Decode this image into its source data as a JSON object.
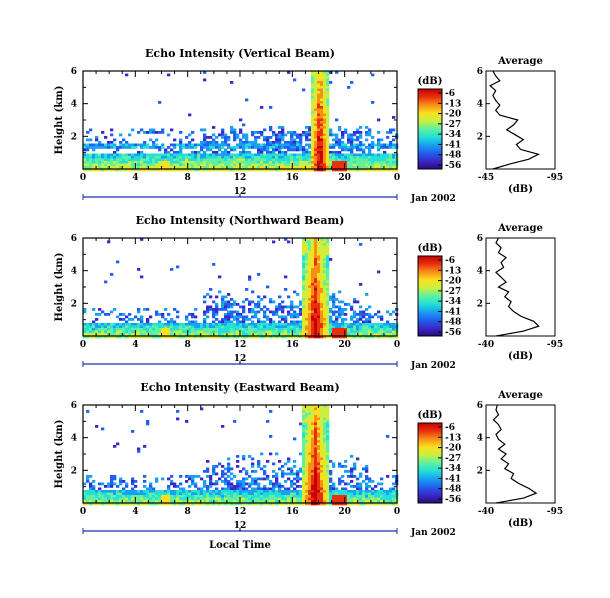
{
  "figure": {
    "xlabel": "Local Time",
    "date_label": "Jan 2002",
    "cbar_unit": "(dB)",
    "avg_title": "Average",
    "avg_xlabel": "(dB)"
  },
  "colormap": [
    "#2a0a7a",
    "#3a28c8",
    "#2060f0",
    "#1aa0f0",
    "#22e0d8",
    "#60f0a0",
    "#c8f040",
    "#f8e020",
    "#f89018",
    "#e83010",
    "#c80000"
  ],
  "chart_data": [
    {
      "type": "heatmap",
      "title": "Echo Intensity (Vertical Beam)",
      "ylabel": "Height (km)",
      "x_range": [
        0,
        24
      ],
      "x_ticks": [
        "0",
        "4",
        "8",
        "12",
        "16",
        "20",
        "0"
      ],
      "x_tick_values": [
        0,
        4,
        8,
        12,
        16,
        20,
        24
      ],
      "day_tick_label": "12",
      "ylim": [
        0,
        6
      ],
      "y_ticks": [
        2,
        4,
        6
      ],
      "colorbar": {
        "unit": "(dB)",
        "ticks": [
          "-6",
          "-13",
          "-20",
          "-27",
          "-34",
          "-41",
          "-48",
          "-56"
        ],
        "range": [
          -56,
          -6
        ]
      },
      "features": {
        "low_layer_top_km": 1.0,
        "band_km": [
          1.3,
          1.7
        ],
        "mid_layer_km": [
          2.2,
          2.8
        ],
        "burst_hours": [
          17.2,
          18.8
        ],
        "burst_top_km": 6
      },
      "average": {
        "title": "Average",
        "xlabel": "(dB)",
        "x_ticks": [
          "-45",
          "-95"
        ],
        "xlim": [
          -45,
          -95
        ],
        "ylim": [
          0,
          6
        ],
        "y_ticks": [
          "2",
          "4",
          "6"
        ],
        "y_tick_values": [
          2,
          4,
          6
        ],
        "profile": [
          {
            "h": 0.0,
            "db": -50
          },
          {
            "h": 0.3,
            "db": -62
          },
          {
            "h": 0.6,
            "db": -76
          },
          {
            "h": 0.9,
            "db": -83
          },
          {
            "h": 1.2,
            "db": -70
          },
          {
            "h": 1.5,
            "db": -67
          },
          {
            "h": 1.8,
            "db": -72
          },
          {
            "h": 2.1,
            "db": -66
          },
          {
            "h": 2.4,
            "db": -60
          },
          {
            "h": 2.7,
            "db": -65
          },
          {
            "h": 3.0,
            "db": -68
          },
          {
            "h": 3.3,
            "db": -55
          },
          {
            "h": 3.6,
            "db": -52
          },
          {
            "h": 3.9,
            "db": -55
          },
          {
            "h": 4.2,
            "db": -52
          },
          {
            "h": 4.5,
            "db": -50
          },
          {
            "h": 4.8,
            "db": -52
          },
          {
            "h": 5.1,
            "db": -48
          },
          {
            "h": 5.4,
            "db": -55
          },
          {
            "h": 5.7,
            "db": -52
          },
          {
            "h": 6.0,
            "db": -50
          }
        ]
      }
    },
    {
      "type": "heatmap",
      "title": "Echo Intensity (Northward Beam)",
      "ylabel": "Height (km)",
      "x_range": [
        0,
        24
      ],
      "x_ticks": [
        "0",
        "4",
        "8",
        "12",
        "16",
        "20",
        "0"
      ],
      "x_tick_values": [
        0,
        4,
        8,
        12,
        16,
        20,
        24
      ],
      "day_tick_label": "12",
      "ylim": [
        0,
        6
      ],
      "y_ticks": [
        2,
        4,
        6
      ],
      "colorbar": {
        "unit": "(dB)",
        "ticks": [
          "-6",
          "-13",
          "-20",
          "-27",
          "-34",
          "-41",
          "-48",
          "-56"
        ],
        "range": [
          -56,
          -6
        ]
      },
      "features": {
        "low_layer_top_km": 0.8,
        "band_km": null,
        "mid_layer_km": [
          1.5,
          3.0
        ],
        "burst_hours": [
          16.7,
          18.6
        ],
        "burst_top_km": 6
      },
      "average": {
        "title": "Average",
        "xlabel": "(dB)",
        "x_ticks": [
          "-40",
          "-95"
        ],
        "xlim": [
          -40,
          -95
        ],
        "ylim": [
          0,
          6
        ],
        "y_ticks": [
          "2",
          "4",
          "6"
        ],
        "y_tick_values": [
          2,
          4,
          6
        ],
        "profile": [
          {
            "h": 0.0,
            "db": -48
          },
          {
            "h": 0.3,
            "db": -70
          },
          {
            "h": 0.6,
            "db": -82
          },
          {
            "h": 0.9,
            "db": -78
          },
          {
            "h": 1.2,
            "db": -68
          },
          {
            "h": 1.5,
            "db": -62
          },
          {
            "h": 1.8,
            "db": -58
          },
          {
            "h": 2.1,
            "db": -60
          },
          {
            "h": 2.4,
            "db": -55
          },
          {
            "h": 2.7,
            "db": -58
          },
          {
            "h": 3.0,
            "db": -50
          },
          {
            "h": 3.3,
            "db": -56
          },
          {
            "h": 3.6,
            "db": -52
          },
          {
            "h": 3.9,
            "db": -48
          },
          {
            "h": 4.2,
            "db": -54
          },
          {
            "h": 4.5,
            "db": -52
          },
          {
            "h": 4.8,
            "db": -56
          },
          {
            "h": 5.1,
            "db": -50
          },
          {
            "h": 5.4,
            "db": -52
          },
          {
            "h": 5.7,
            "db": -48
          },
          {
            "h": 6.0,
            "db": -50
          }
        ]
      }
    },
    {
      "type": "heatmap",
      "title": "Echo Intensity (Eastward Beam)",
      "ylabel": "Height (km)",
      "x_range": [
        0,
        24
      ],
      "x_ticks": [
        "0",
        "4",
        "8",
        "12",
        "16",
        "20",
        "0"
      ],
      "x_tick_values": [
        0,
        4,
        8,
        12,
        16,
        20,
        24
      ],
      "day_tick_label": "12",
      "ylim": [
        0,
        6
      ],
      "y_ticks": [
        2,
        4,
        6
      ],
      "colorbar": {
        "unit": "(dB)",
        "ticks": [
          "-6",
          "-13",
          "-20",
          "-27",
          "-34",
          "-41",
          "-48",
          "-56"
        ],
        "range": [
          -56,
          -6
        ]
      },
      "features": {
        "low_layer_top_km": 0.8,
        "band_km": null,
        "mid_layer_km": [
          1.5,
          3.2
        ],
        "burst_hours": [
          16.7,
          18.6
        ],
        "burst_top_km": 6
      },
      "average": {
        "title": "Average",
        "xlabel": "(dB)",
        "x_ticks": [
          "-40",
          "-95"
        ],
        "xlim": [
          -40,
          -95
        ],
        "ylim": [
          0,
          6
        ],
        "y_ticks": [
          "2",
          "4",
          "6"
        ],
        "y_tick_values": [
          2,
          4,
          6
        ],
        "profile": [
          {
            "h": 0.0,
            "db": -48
          },
          {
            "h": 0.3,
            "db": -70
          },
          {
            "h": 0.6,
            "db": -80
          },
          {
            "h": 0.9,
            "db": -74
          },
          {
            "h": 1.2,
            "db": -66
          },
          {
            "h": 1.5,
            "db": -60
          },
          {
            "h": 1.8,
            "db": -62
          },
          {
            "h": 2.1,
            "db": -55
          },
          {
            "h": 2.4,
            "db": -58
          },
          {
            "h": 2.7,
            "db": -52
          },
          {
            "h": 3.0,
            "db": -56
          },
          {
            "h": 3.3,
            "db": -50
          },
          {
            "h": 3.6,
            "db": -55
          },
          {
            "h": 3.9,
            "db": -50
          },
          {
            "h": 4.2,
            "db": -48
          },
          {
            "h": 4.5,
            "db": -52
          },
          {
            "h": 4.8,
            "db": -50
          },
          {
            "h": 5.1,
            "db": -46
          },
          {
            "h": 5.4,
            "db": -50
          },
          {
            "h": 5.7,
            "db": -48
          },
          {
            "h": 6.0,
            "db": -49
          }
        ]
      }
    }
  ]
}
